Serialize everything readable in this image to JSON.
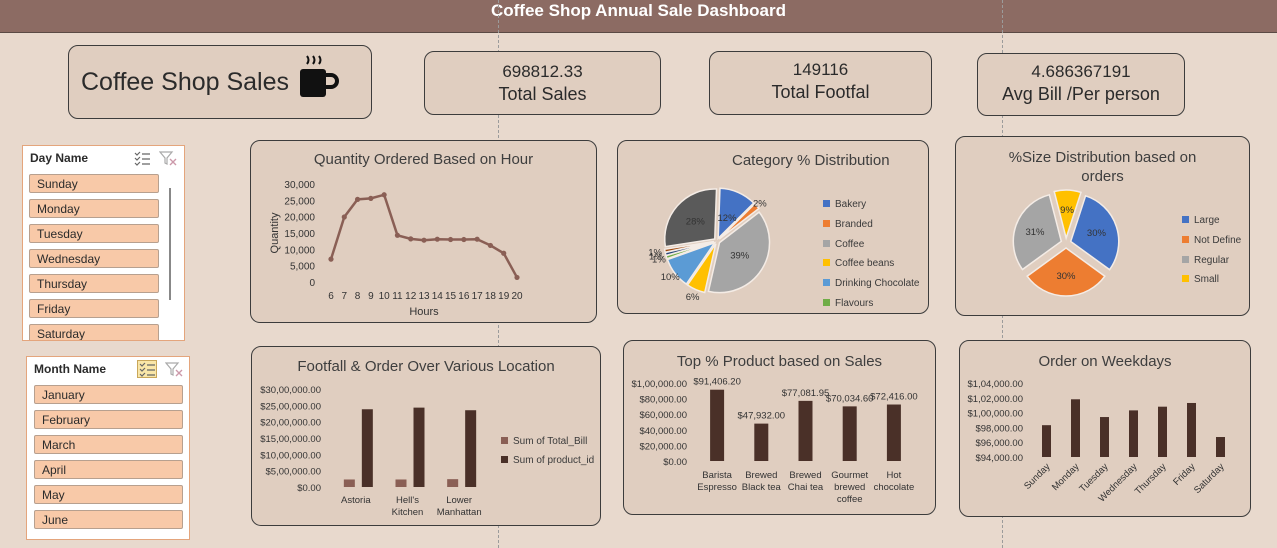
{
  "header": {
    "title": "Coffee Shop Annual Sale Dashboard"
  },
  "brand": {
    "title": "Coffee Shop Sales",
    "icon": "coffee-cup-icon"
  },
  "kpis": {
    "total_sales": {
      "value": "698812.33",
      "label": "Total Sales"
    },
    "total_footfall": {
      "value": "149116",
      "label": "Total Footfal"
    },
    "avg_bill": {
      "value": "4.686367191",
      "label": "Avg Bill /Per person"
    }
  },
  "day_slicer": {
    "title": "Day Name",
    "items": [
      "Sunday",
      "Monday",
      "Tuesday",
      "Wednesday",
      "Thursday",
      "Friday",
      "Saturday"
    ]
  },
  "month_slicer": {
    "title": "Month Name",
    "items": [
      "January",
      "February",
      "March",
      "April",
      "May",
      "June"
    ]
  },
  "charts": {
    "hour": {
      "title": "Quantity Ordered Based on Hour"
    },
    "category": {
      "title": "Category % Distribution",
      "legend": [
        "Bakery",
        "Branded",
        "Coffee",
        "Coffee beans",
        "Drinking Chocolate",
        "Flavours"
      ]
    },
    "size": {
      "title_line1": "%Size Distribution based on",
      "title_line2": "orders",
      "legend": [
        "Large",
        "Not Define",
        "Regular",
        "Small"
      ]
    },
    "location": {
      "title": "Footfall & Order Over Various Location",
      "legend": [
        "Sum of Total_Bill",
        "Sum of product_id"
      ]
    },
    "product": {
      "title": "Top % Product based on Sales"
    },
    "weekday": {
      "title": "Order on Weekdays"
    }
  },
  "colors": {
    "header": "#8c6b63",
    "card": "#e0cec0",
    "bar": "#4a3028",
    "line": "#8a5f55",
    "slicer_item": "#f8c9a8",
    "pie_blue": "#4472c4",
    "pie_orange": "#ed7d31",
    "pie_gray": "#a5a5a5",
    "pie_yellow": "#ffc000",
    "pie_lightblue": "#5b9bd5",
    "pie_green": "#70ad47",
    "pie_dark": "#5a5a5a",
    "pie_darkblue": "#264478"
  },
  "chart_data": [
    {
      "id": "hour",
      "type": "line",
      "title": "Quantity Ordered Based on Hour",
      "xlabel": "Hours",
      "ylabel": "Quantity",
      "x": [
        6,
        7,
        8,
        9,
        10,
        11,
        12,
        13,
        14,
        15,
        16,
        17,
        18,
        19,
        20
      ],
      "y": [
        7000,
        19900,
        25300,
        25600,
        26700,
        14300,
        13200,
        12800,
        13100,
        13000,
        13000,
        13100,
        11200,
        8800,
        1400
      ],
      "yticks": [
        "0",
        "5,000",
        "10,000",
        "15,000",
        "20,000",
        "25,000",
        "30,000"
      ],
      "ylim": [
        0,
        30000
      ]
    },
    {
      "id": "category",
      "type": "pie",
      "title": "Category % Distribution",
      "slices": [
        {
          "name": "Bakery",
          "value": 12,
          "label": "12%"
        },
        {
          "name": "Branded",
          "value": 2,
          "label": "2%"
        },
        {
          "name": "Coffee",
          "value": 39,
          "label": "39%"
        },
        {
          "name": "Coffee beans",
          "value": 6,
          "label": "6%"
        },
        {
          "name": "Drinking Chocolate",
          "value": 10,
          "label": "10%"
        },
        {
          "name": "Flavours",
          "value": 1,
          "label": "1%"
        },
        {
          "name": "",
          "value": 1,
          "label": "1%"
        },
        {
          "name": "",
          "value": 1,
          "label": "1%"
        },
        {
          "name": "",
          "value": 28,
          "label": "28%"
        }
      ]
    },
    {
      "id": "size",
      "type": "pie",
      "title": "%Size Distribution based on orders",
      "slices": [
        {
          "name": "Large",
          "value": 30,
          "label": "30%"
        },
        {
          "name": "Not Define",
          "value": 30,
          "label": "30%"
        },
        {
          "name": "Regular",
          "value": 31,
          "label": "31%"
        },
        {
          "name": "Small",
          "value": 9,
          "label": "9%"
        }
      ]
    },
    {
      "id": "location",
      "type": "bar",
      "title": "Footfall & Order Over Various Location",
      "categories": [
        [
          "Astoria"
        ],
        [
          "Hell's",
          "Kitchen"
        ],
        [
          "Lower",
          "Manhattan"
        ]
      ],
      "series": [
        {
          "name": "Sum of Total_Bill",
          "values": [
            2300000,
            2300000,
            2400000
          ]
        },
        {
          "name": "Sum of product_id",
          "values": [
            23800000,
            24300000,
            23500000
          ]
        }
      ],
      "yticks": [
        "$0.00",
        "$5,00,000.00",
        "$10,00,000.00",
        "$15,00,000.00",
        "$20,00,000.00",
        "$25,00,000.00",
        "$30,00,000.00"
      ],
      "ylim": [
        0,
        30000000
      ]
    },
    {
      "id": "product",
      "type": "bar",
      "title": "Top % Product based on Sales",
      "categories": [
        [
          "Barista",
          "Espresso"
        ],
        [
          "Brewed",
          "Black tea"
        ],
        [
          "Brewed",
          "Chai tea"
        ],
        [
          "Gourmet",
          "brewed",
          "coffee"
        ],
        [
          "Hot",
          "chocolate"
        ]
      ],
      "values": [
        91406.2,
        47932.0,
        77081.95,
        70034.6,
        72416.0
      ],
      "data_labels": [
        "$91,406.20",
        "$47,932.00",
        "$77,081.95",
        "$70,034.60",
        "$72,416.00"
      ],
      "yticks": [
        "$0.00",
        "$20,000.00",
        "$40,000.00",
        "$60,000.00",
        "$80,000.00",
        "$1,00,000.00"
      ],
      "ylim": [
        0,
        100000
      ]
    },
    {
      "id": "weekday",
      "type": "bar",
      "title": "Order on Weekdays",
      "categories": [
        "Sunday",
        "Monday",
        "Tuesday",
        "Wednesday",
        "Thursday",
        "Friday",
        "Saturday"
      ],
      "values": [
        98300,
        101800,
        99400,
        100300,
        100800,
        101300,
        96700
      ],
      "yticks": [
        "$94,000.00",
        "$96,000.00",
        "$98,000.00",
        "$1,00,000.00",
        "$1,02,000.00",
        "$1,04,000.00"
      ],
      "ylim": [
        94000,
        104000
      ]
    }
  ]
}
